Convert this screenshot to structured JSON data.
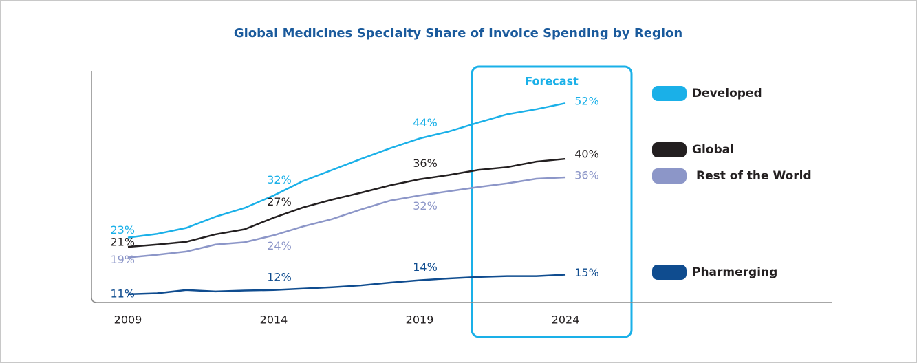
{
  "chart_data": {
    "type": "line",
    "title": "Global Medicines Specialty Share of Invoice Spending by Region",
    "annotation": "Forecast",
    "x": [
      2009,
      2010,
      2011,
      2012,
      2013,
      2014,
      2015,
      2016,
      2017,
      2018,
      2019,
      2020,
      2021,
      2022,
      2023,
      2024
    ],
    "xlim": [
      2007.75,
      2033.15
    ],
    "xticks": [
      2009,
      2014,
      2019,
      2024
    ],
    "ylim": [
      9,
      59
    ],
    "series": [
      {
        "name": "Developed",
        "color": "#1ab0e8",
        "values": [
          23,
          23.8,
          25.1,
          27.5,
          29.4,
          32.1,
          35.2,
          37.6,
          40,
          42.3,
          44.4,
          45.9,
          47.8,
          49.6,
          50.7,
          52
        ],
        "value_labels": [
          "23%",
          null,
          null,
          null,
          null,
          "32%",
          null,
          null,
          null,
          null,
          "44%",
          null,
          null,
          null,
          null,
          "52%"
        ]
      },
      {
        "name": "Global",
        "color": "#231f20",
        "values": [
          21,
          21.5,
          22.1,
          23.7,
          24.8,
          27.3,
          29.5,
          31.2,
          32.7,
          34.3,
          35.6,
          36.5,
          37.6,
          38.2,
          39.4,
          40
        ],
        "value_labels": [
          "21%",
          null,
          null,
          null,
          null,
          "27%",
          null,
          null,
          null,
          null,
          "36%",
          null,
          null,
          null,
          null,
          "40%"
        ]
      },
      {
        "name": "Rest of the World",
        "color": "#8c96c8",
        "values": [
          18.7,
          19.3,
          20,
          21.5,
          22,
          23.5,
          25.4,
          27,
          29.1,
          31,
          32.1,
          33,
          33.9,
          34.7,
          35.7,
          36
        ],
        "value_labels": [
          "19%",
          null,
          null,
          null,
          null,
          "24%",
          null,
          null,
          null,
          null,
          "32%",
          null,
          null,
          null,
          null,
          "36%"
        ]
      },
      {
        "name": "Pharmerging",
        "color": "#0f4c8f",
        "values": [
          10.8,
          11,
          11.7,
          11.4,
          11.6,
          11.7,
          12,
          12.3,
          12.7,
          13.3,
          13.8,
          14.2,
          14.5,
          14.7,
          14.7,
          15
        ],
        "value_labels": [
          "11%",
          null,
          null,
          null,
          null,
          "12%",
          null,
          null,
          null,
          null,
          "14%",
          null,
          null,
          null,
          null,
          "15%"
        ]
      }
    ]
  }
}
